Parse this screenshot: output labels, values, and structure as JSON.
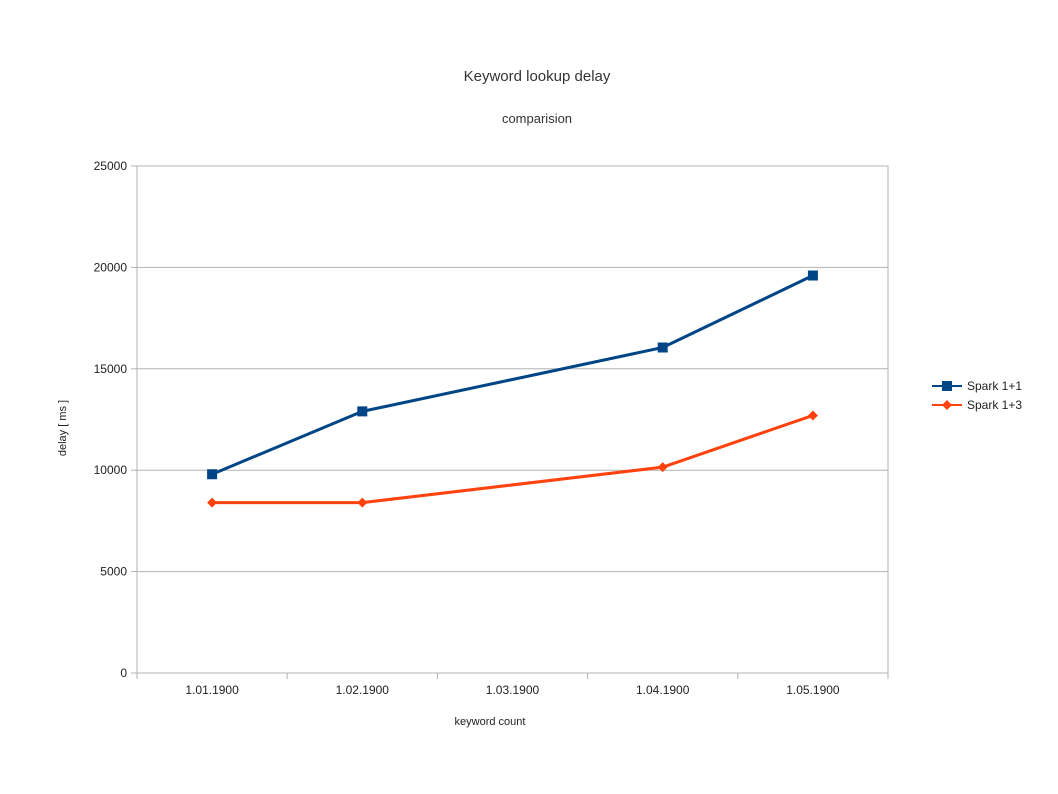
{
  "chart_data": {
    "type": "line",
    "title": "Keyword lookup delay",
    "subtitle": "comparision",
    "xlabel": "keyword count",
    "ylabel": "delay [ ms ]",
    "categories": [
      "1.01.1900",
      "1.02.1900",
      "1.03.1900",
      "1.04.1900",
      "1.05.1900"
    ],
    "ylim": [
      0,
      25000
    ],
    "yticks": [
      "0",
      "5000",
      "10000",
      "15000",
      "20000",
      "25000"
    ],
    "grid": true,
    "legend_position": "right",
    "series": [
      {
        "name": "Spark 1+1",
        "color": "#004586",
        "marker": "square",
        "values": [
          9800,
          12900,
          null,
          16050,
          19600
        ]
      },
      {
        "name": "Spark 1+3",
        "color": "#ff420e",
        "marker": "diamond",
        "values": [
          8400,
          8400,
          null,
          10150,
          12700
        ]
      }
    ]
  }
}
